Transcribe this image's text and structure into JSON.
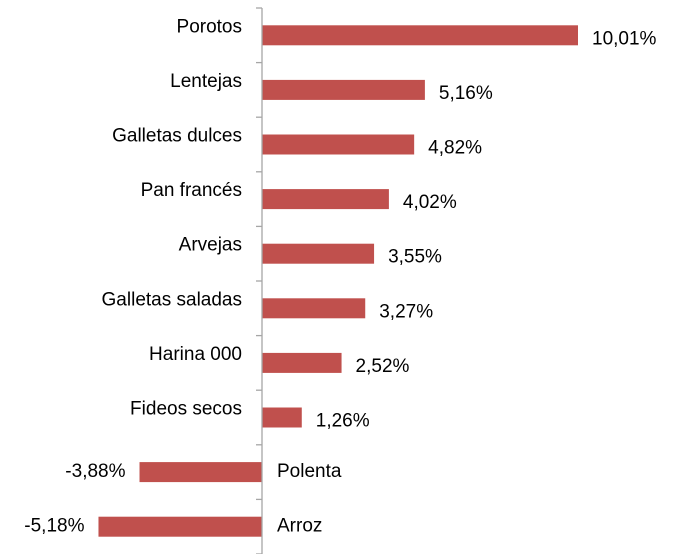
{
  "chart_data": {
    "type": "bar",
    "orientation": "horizontal",
    "categories": [
      "Porotos",
      "Lentejas",
      "Galletas dulces",
      "Pan francés",
      "Arvejas",
      "Galletas saladas",
      "Harina 000",
      "Fideos secos",
      "Polenta",
      "Arroz"
    ],
    "values": [
      10.01,
      5.16,
      4.82,
      4.02,
      3.55,
      3.27,
      2.52,
      1.26,
      -3.88,
      -5.18
    ],
    "value_labels": [
      "10,01%",
      "5,16%",
      "4,82%",
      "4,02%",
      "3,55%",
      "3,27%",
      "2,52%",
      "1,26%",
      "-3,88%",
      "-5,18%"
    ],
    "color": "#c0504d"
  }
}
